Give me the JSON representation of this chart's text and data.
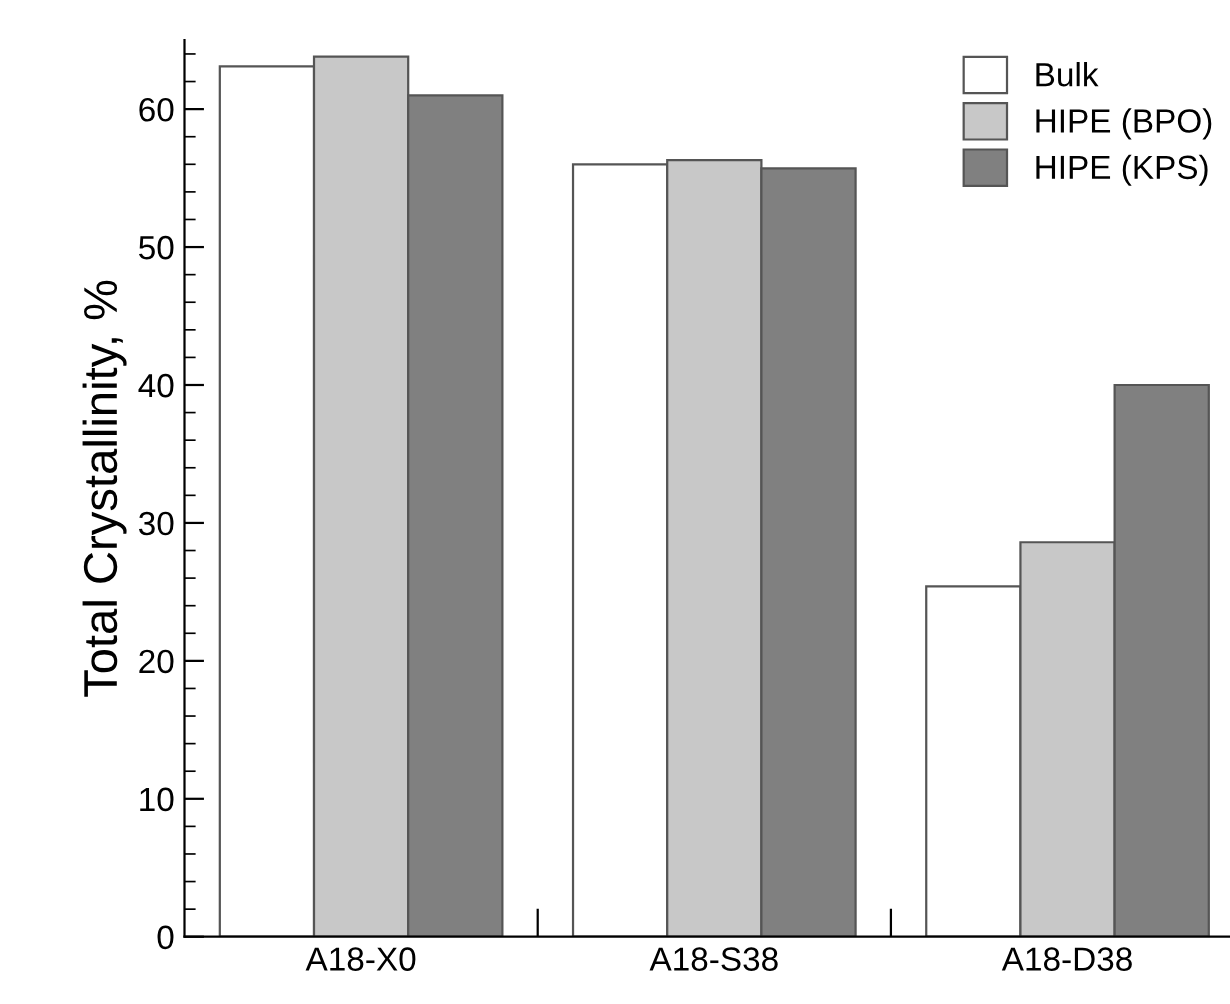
{
  "chart_data": {
    "type": "bar",
    "ylabel": "Total Crystallinity, %",
    "categories": [
      "A18-X0",
      "A18-S38",
      "A18-D38"
    ],
    "series": [
      {
        "name": "Bulk",
        "color": "#ffffff",
        "values": [
          63.1,
          56.0,
          25.4
        ]
      },
      {
        "name": "HIPE (BPO)",
        "color": "#c8c8c8",
        "values": [
          63.8,
          56.3,
          28.6
        ]
      },
      {
        "name": "HIPE (KPS)",
        "color": "#808080",
        "values": [
          61.0,
          55.7,
          40.0
        ]
      }
    ],
    "ylim": [
      0,
      65
    ],
    "yticks": [
      0,
      10,
      20,
      30,
      40,
      50,
      60
    ],
    "grid": false,
    "legend": "top right"
  }
}
